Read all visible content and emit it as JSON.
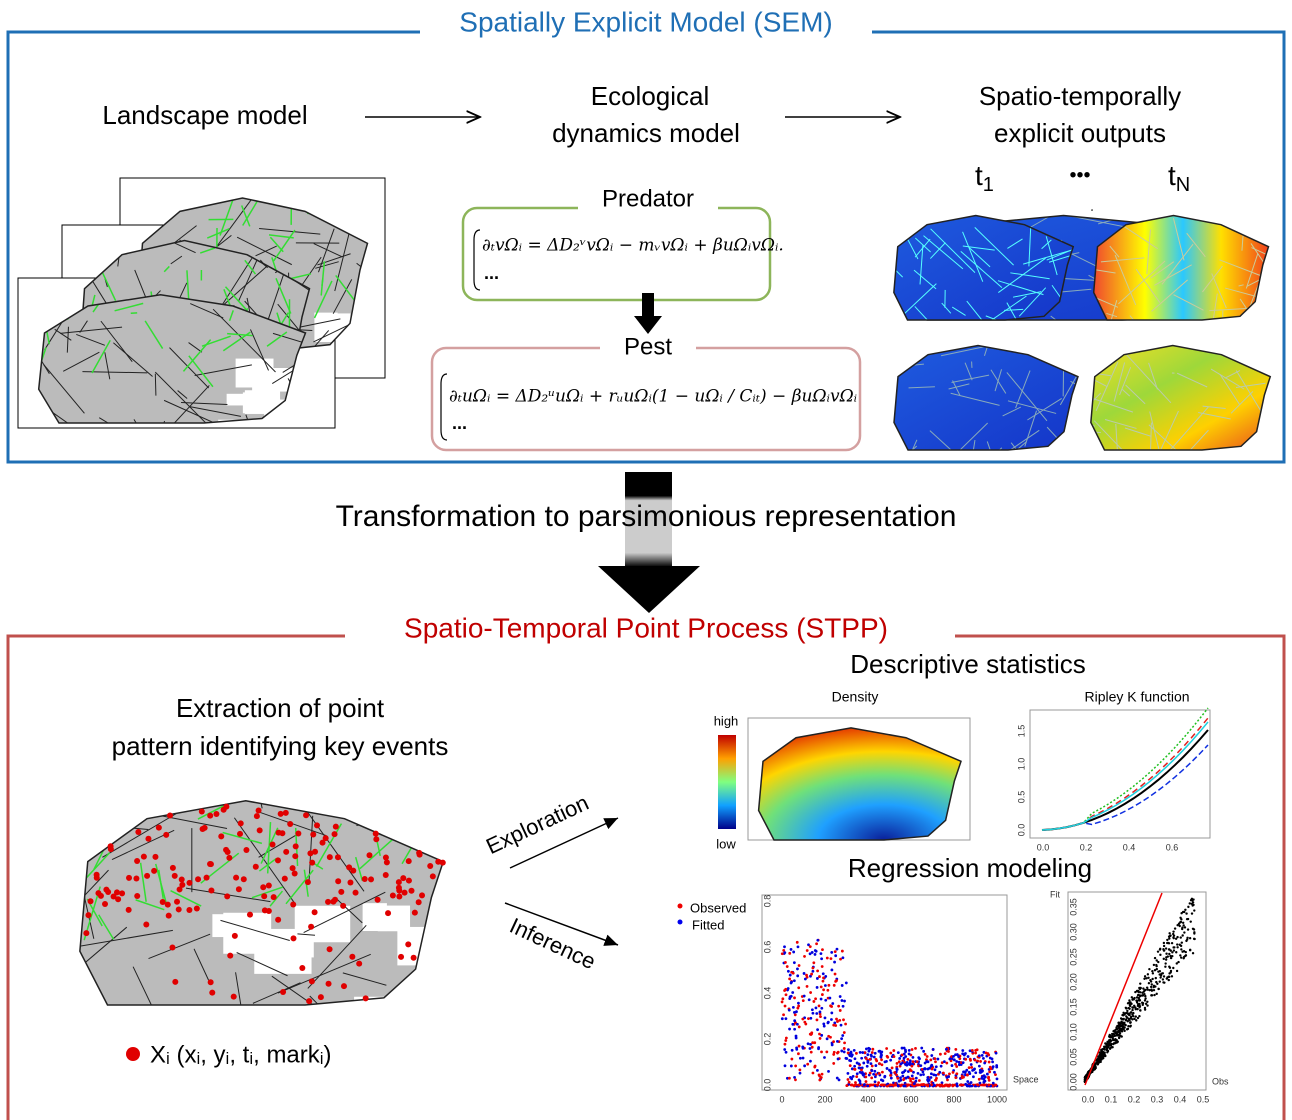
{
  "sem": {
    "title": "Spatially Explicit Model (SEM)",
    "landscape": "Landscape model",
    "ecological": [
      "Ecological",
      "dynamics model"
    ],
    "outputs": [
      "Spatio-temporally",
      "explicit outputs"
    ],
    "t_first": "t",
    "t_first_sub": "1",
    "ellipsis": "•••",
    "t_last": "t",
    "t_last_sub": "N",
    "predator": {
      "title": "Predator",
      "equation": "∂ₜvΩᵢ = ΔD₂ᵛvΩᵢ − mᵥvΩᵢ + βuΩᵢvΩᵢ.",
      "more": "..."
    },
    "pest": {
      "title": "Pest",
      "equation": "∂ₜuΩᵢ = ΔD₂ᵘuΩᵢ + rᵤuΩᵢ(1 − uΩᵢ / Cᵢₜ) − βuΩᵢvΩᵢ",
      "more": "..."
    }
  },
  "transformation": "Transformation to parsimonious representation",
  "stpp": {
    "title": "Spatio-Temporal Point Process (STPP)",
    "extraction": [
      "Extraction of point",
      "pattern identifying key events"
    ],
    "legend": "Xᵢ (xᵢ, yᵢ, tᵢ, markᵢ)",
    "exploration": "Exploration",
    "inference": "Inference",
    "descriptive": "Descriptive statistics",
    "density": {
      "title": "Density",
      "high": "high",
      "low": "low"
    },
    "ripley": {
      "title": "Ripley K function",
      "xticks": [
        "0.0",
        "0.2",
        "0.4",
        "0.6"
      ],
      "yticks": [
        "0.0",
        "0.5",
        "1.0",
        "1.5"
      ]
    },
    "regression": "Regression modeling",
    "scatter": {
      "legend": [
        "Observed",
        "Fitted"
      ],
      "xticks": [
        0,
        200,
        400,
        600,
        800,
        1000
      ],
      "xlabel": "Space",
      "yticks": [
        "0.0",
        "0.2",
        "0.4",
        "0.6",
        "0.8"
      ]
    },
    "fit": {
      "ylabel": "Fit",
      "xlabel": "Obs",
      "xticks": [
        "0.0",
        "0.1",
        "0.2",
        "0.3",
        "0.4",
        "0.5"
      ],
      "yticks": [
        "0.00",
        "0.05",
        "0.10",
        "0.15",
        "0.20",
        "0.25",
        "0.30",
        "0.35"
      ]
    }
  }
}
